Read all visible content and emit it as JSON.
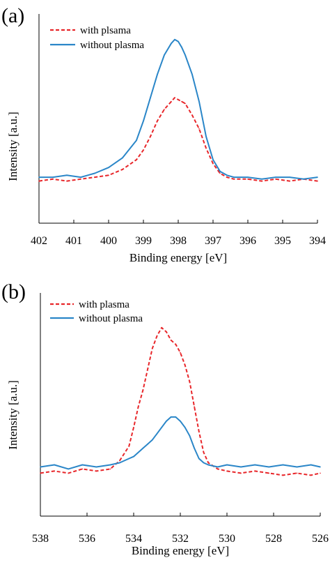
{
  "colors": {
    "with_plasma": "#e8262a",
    "without_plasma": "#2a86c8",
    "axis": "#000000"
  },
  "chart_data": [
    {
      "type": "line",
      "panel_label": "(a)",
      "xlabel": "Binding energy [eV]",
      "ylabel": "Intensity [a.u.]",
      "xlim": [
        402,
        394
      ],
      "x_reversed": true,
      "xticks": [
        402,
        401,
        400,
        399,
        398,
        397,
        396,
        395,
        394
      ],
      "yticks_shown": false,
      "ylim": [
        0,
        1
      ],
      "legend_position": "top-left",
      "series": [
        {
          "name": "with plsama",
          "style": "dashed",
          "color_key": "with_plasma",
          "x": [
            402,
            401.6,
            401.2,
            400.8,
            400.4,
            400.0,
            399.6,
            399.2,
            399.0,
            398.8,
            398.6,
            398.4,
            398.2,
            398.1,
            398.0,
            397.9,
            397.8,
            397.6,
            397.4,
            397.2,
            397.0,
            396.8,
            396.6,
            396.4,
            396.0,
            395.6,
            395.2,
            394.8,
            394.4,
            394.0
          ],
          "y": [
            0.21,
            0.22,
            0.21,
            0.22,
            0.23,
            0.24,
            0.27,
            0.32,
            0.37,
            0.44,
            0.52,
            0.58,
            0.62,
            0.64,
            0.63,
            0.62,
            0.61,
            0.55,
            0.48,
            0.38,
            0.3,
            0.25,
            0.23,
            0.22,
            0.22,
            0.21,
            0.22,
            0.21,
            0.22,
            0.21
          ]
        },
        {
          "name": "without plasma",
          "style": "solid",
          "color_key": "without_plasma",
          "x": [
            402,
            401.6,
            401.2,
            400.8,
            400.4,
            400.0,
            399.6,
            399.2,
            399.0,
            398.8,
            398.6,
            398.4,
            398.2,
            398.1,
            398.0,
            397.9,
            397.8,
            397.6,
            397.4,
            397.2,
            397.0,
            396.8,
            396.6,
            396.4,
            396.0,
            395.6,
            395.2,
            394.8,
            394.4,
            394.0
          ],
          "y": [
            0.23,
            0.23,
            0.24,
            0.23,
            0.25,
            0.28,
            0.33,
            0.42,
            0.52,
            0.64,
            0.76,
            0.86,
            0.92,
            0.94,
            0.93,
            0.9,
            0.86,
            0.76,
            0.62,
            0.44,
            0.32,
            0.26,
            0.24,
            0.23,
            0.23,
            0.22,
            0.23,
            0.23,
            0.22,
            0.23
          ]
        }
      ]
    },
    {
      "type": "line",
      "panel_label": "(b)",
      "xlabel": "Binding energy [eV]",
      "ylabel": "Intensity [a.u.]",
      "xlim": [
        538,
        526
      ],
      "x_reversed": true,
      "xticks": [
        538,
        536,
        534,
        532,
        530,
        528,
        526
      ],
      "yticks_shown": false,
      "ylim": [
        0,
        1
      ],
      "legend_position": "top-left",
      "series": [
        {
          "name": "with plasma",
          "style": "dashed",
          "color_key": "with_plasma",
          "x": [
            538,
            537.4,
            536.8,
            536.2,
            535.6,
            535.0,
            534.6,
            534.2,
            534.0,
            533.8,
            533.6,
            533.4,
            533.2,
            533.0,
            532.8,
            532.6,
            532.4,
            532.2,
            532.0,
            531.8,
            531.6,
            531.4,
            531.2,
            531.0,
            530.8,
            530.4,
            530.0,
            529.4,
            528.8,
            528.2,
            527.6,
            527.0,
            526.4,
            526.0
          ],
          "y": [
            0.2,
            0.21,
            0.2,
            0.22,
            0.21,
            0.22,
            0.26,
            0.33,
            0.42,
            0.52,
            0.6,
            0.7,
            0.8,
            0.86,
            0.9,
            0.88,
            0.84,
            0.82,
            0.78,
            0.72,
            0.64,
            0.52,
            0.4,
            0.3,
            0.25,
            0.22,
            0.21,
            0.2,
            0.21,
            0.2,
            0.19,
            0.2,
            0.19,
            0.2
          ]
        },
        {
          "name": "without plasma",
          "style": "solid",
          "color_key": "without_plasma",
          "x": [
            538,
            537.4,
            536.8,
            536.2,
            535.6,
            535.0,
            534.6,
            534.2,
            534.0,
            533.8,
            533.6,
            533.4,
            533.2,
            533.0,
            532.8,
            532.6,
            532.4,
            532.2,
            532.0,
            531.8,
            531.6,
            531.4,
            531.2,
            531.0,
            530.8,
            530.4,
            530.0,
            529.4,
            528.8,
            528.2,
            527.6,
            527.0,
            526.4,
            526.0
          ],
          "y": [
            0.23,
            0.24,
            0.22,
            0.24,
            0.23,
            0.24,
            0.25,
            0.27,
            0.28,
            0.3,
            0.32,
            0.34,
            0.36,
            0.39,
            0.42,
            0.45,
            0.47,
            0.47,
            0.45,
            0.42,
            0.38,
            0.32,
            0.27,
            0.25,
            0.24,
            0.23,
            0.24,
            0.23,
            0.24,
            0.23,
            0.24,
            0.23,
            0.24,
            0.23
          ]
        }
      ]
    }
  ]
}
